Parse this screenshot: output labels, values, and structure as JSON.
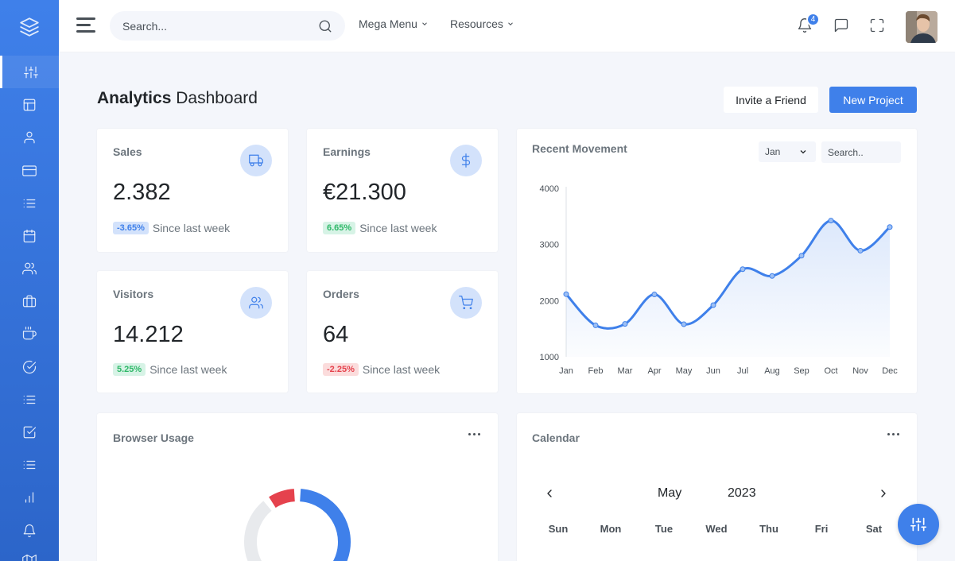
{
  "sidebar": {
    "logo_icon": "layers-icon",
    "items": [
      {
        "icon": "sliders-icon",
        "active": true
      },
      {
        "icon": "layout-icon"
      },
      {
        "icon": "user-icon"
      },
      {
        "icon": "credit-card-icon"
      },
      {
        "icon": "list-icon"
      },
      {
        "icon": "calendar-icon"
      },
      {
        "icon": "users-icon"
      },
      {
        "icon": "briefcase-icon"
      },
      {
        "icon": "coffee-icon"
      },
      {
        "icon": "check-circle-icon"
      },
      {
        "icon": "list-icon"
      },
      {
        "icon": "check-square-icon"
      },
      {
        "icon": "list-icon"
      },
      {
        "icon": "bar-chart-icon"
      },
      {
        "icon": "bell-icon"
      },
      {
        "icon": "map-icon"
      }
    ]
  },
  "topbar": {
    "search_placeholder": "Search...",
    "mega_menu": "Mega Menu",
    "resources": "Resources",
    "notification_count": "4"
  },
  "header": {
    "title_bold": "Analytics",
    "title_rest": "Dashboard",
    "invite_button": "Invite a Friend",
    "new_project_button": "New Project"
  },
  "stats": {
    "sales": {
      "title": "Sales",
      "value": "2.382",
      "change": "-3.65%",
      "note": "Since last week",
      "icon": "truck-icon"
    },
    "earnings": {
      "title": "Earnings",
      "value": "€21.300",
      "change": "6.65%",
      "note": "Since last week",
      "icon": "dollar-icon"
    },
    "visitors": {
      "title": "Visitors",
      "value": "14.212",
      "change": "5.25%",
      "note": "Since last week",
      "icon": "users-icon"
    },
    "orders": {
      "title": "Orders",
      "value": "64",
      "change": "-2.25%",
      "note": "Since last week",
      "icon": "shopping-cart-icon"
    }
  },
  "movement": {
    "title": "Recent Movement",
    "select_value": "Jan",
    "search_placeholder": "Search.."
  },
  "browser_usage": {
    "title": "Browser Usage"
  },
  "calendar": {
    "title": "Calendar",
    "month": "May",
    "year": "2023",
    "days": [
      "Sun",
      "Mon",
      "Tue",
      "Wed",
      "Thu",
      "Fri",
      "Sat"
    ]
  },
  "chart_data": {
    "type": "area",
    "categories": [
      "Jan",
      "Feb",
      "Mar",
      "Apr",
      "May",
      "Jun",
      "Jul",
      "Aug",
      "Sep",
      "Oct",
      "Nov",
      "Dec"
    ],
    "series": [
      {
        "values": [
          2115,
          1560,
          1585,
          2110,
          1580,
          1920,
          2560,
          2440,
          2800,
          3425,
          2890,
          3310
        ]
      }
    ],
    "y_ticks": [
      1000,
      2000,
      3000,
      4000
    ],
    "ylim": [
      1000,
      4000
    ],
    "line_color": "#3f80ea"
  },
  "donut_data": {
    "type": "pie",
    "values": [
      55,
      35,
      10
    ],
    "colors": [
      "#3f80ea",
      "#e8eaed",
      "#e5424d"
    ]
  }
}
